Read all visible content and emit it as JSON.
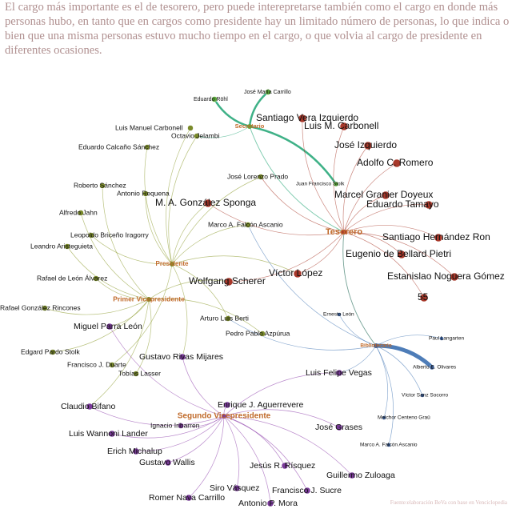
{
  "caption": "El cargo más importante es el de tesorero, pero puede interepretarse también como el cargo en donde más personas hubo, en tanto que en cargos como presidente hay un limitado número de personas, lo que indica o bien que una misma personas estuvo mucho tiempo en el cargo, o que volvia al cargo de presidente en diferentes ocasiones.",
  "source": "Fuente:elaboración BeVa con base en Venciclopedia",
  "roles": [
    "Secretario",
    "Tesorero",
    "Presidente",
    "Primer Vicepresidente",
    "Bibliotecario",
    "Segundo Vicepresidente"
  ],
  "nodes": [
    "Eduardo Röhl",
    "José María Carrillo",
    "Juan Francisco Stolk",
    "Santiago Vera Izquierdo",
    "Luis M. Carbonell",
    "José Izquierdo",
    "Adolfo C. Romero",
    "Marcel Granier Doyeux",
    "Eduardo Tamayo",
    "Santiago Hernández Ron",
    "Eugenio de Bellard Pietri",
    "Estanislao Noguera Gómez",
    "55",
    "Víctor López",
    "Wolfgang Scherer",
    "M. A. González Sponga",
    "Luis Manuel Carbonell",
    "Octavio Jelambi",
    "Eduardo Calcaño Sánchez",
    "José Lorenzo Prado",
    "Roberto Sánchez",
    "Antonio Requena",
    "Alfredo Jahn",
    "Leopoldo Briceño Iragorry",
    "Leandro Aristeguieta",
    "Marco A. Falcón Ascanio",
    "Rafael de León Álvarez",
    "Rafael González Rincones",
    "Arturo Luis Berti",
    "Pedro Pablo Azpúrua",
    "Edgard Pardo Stolk",
    "Francisco J. Duarte",
    "Tobías Lasser",
    "Ernesto León",
    "Paul Langarten",
    "Alberto E. Olivares",
    "Víctor Sanz Socorro",
    "Melchor Centeno Graü",
    "Marco A. Falcón Ascanio",
    "Miguel Parra León",
    "Gustavo Rivas Mijares",
    "Luis Felipe Vegas",
    "Claudio Bifano",
    "Enrique J. Aguerrevere",
    "Ignacio Iribarren",
    "Luis Wannoni Lander",
    "José Grases",
    "Erich Michalup",
    "Gustavo Wallis",
    "Jesús R. Rísquez",
    "Guillermo Zuloaga",
    "Siro Vásquez",
    "Francisco J. Sucre",
    "Romer Nava Carrillo",
    "Antonio P. Mora"
  ]
}
